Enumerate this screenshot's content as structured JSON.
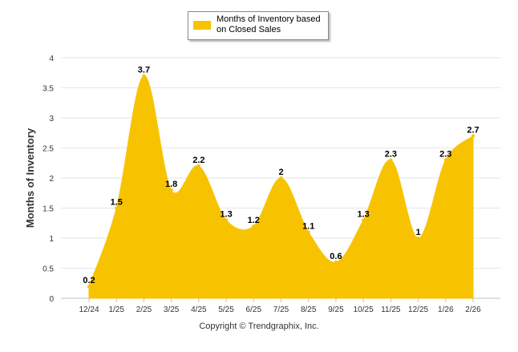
{
  "legend": {
    "text": "Months of Inventory based on Closed Sales"
  },
  "copyright": "Copyright © Trendgraphix, Inc.",
  "colors": {
    "area_fill": "#f7c300",
    "grid": "#e6e6e6",
    "axis_text": "#333333",
    "label_text": "#000000"
  },
  "chart_data": {
    "type": "area",
    "title": "",
    "ylabel": "Months of Inventory",
    "xlabel": "",
    "ylim": [
      0,
      4
    ],
    "yticks": [
      "0",
      "0.5",
      "1",
      "1.5",
      "2",
      "2.5",
      "3",
      "3.5",
      "4"
    ],
    "grid": true,
    "legend_position": "top-center",
    "categories": [
      "12/24",
      "1/25",
      "2/25",
      "3/25",
      "4/25",
      "5/25",
      "6/25",
      "7/25",
      "8/25",
      "9/25",
      "10/25",
      "11/25",
      "12/25",
      "1/26",
      "2/26"
    ],
    "series": [
      {
        "name": "Months of Inventory based on Closed Sales",
        "values": [
          0.2,
          1.5,
          3.7,
          1.8,
          2.2,
          1.3,
          1.2,
          2,
          1.1,
          0.6,
          1.3,
          2.3,
          1,
          2.3,
          2.7
        ],
        "labels": [
          "0.2",
          "1.5",
          "3.7",
          "1.8",
          "2.2",
          "1.3",
          "1.2",
          "2",
          "1.1",
          "0.6",
          "1.3",
          "2.3",
          "1",
          "2.3",
          "2.7"
        ]
      }
    ]
  }
}
